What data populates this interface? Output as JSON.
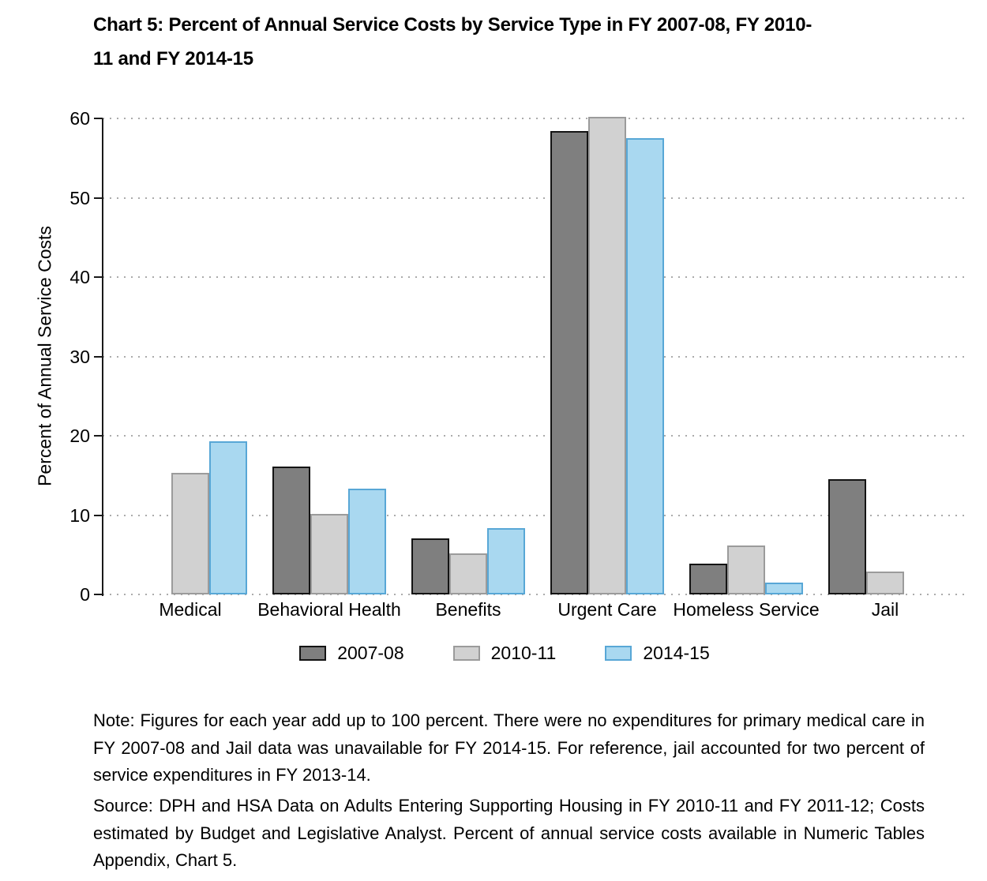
{
  "title": {
    "line1": "Chart 5: Percent of Annual Service Costs by Service Type in FY 2007-08, FY 2010-",
    "line2": "11 and FY 2014-15"
  },
  "chart_data": {
    "type": "bar",
    "categories": [
      "Medical",
      "Behavioral Health",
      "Benefits",
      "Urgent Care",
      "Homeless Service",
      "Jail"
    ],
    "series": [
      {
        "name": "2007-08",
        "fill": "#7f7f7f",
        "border": "#141414",
        "values": [
          0,
          16.1,
          7.1,
          58.4,
          3.9,
          14.5
        ]
      },
      {
        "name": "2010-11",
        "fill": "#d1d1d1",
        "border": "#9b9b9b",
        "values": [
          15.3,
          10.2,
          5.2,
          60.2,
          6.2,
          2.9
        ]
      },
      {
        "name": "2014-15",
        "fill": "#a9d8f0",
        "border": "#58a7d6",
        "values": [
          19.3,
          13.3,
          8.4,
          57.5,
          1.5,
          0
        ]
      }
    ],
    "title": "Chart 5: Percent of Annual Service Costs by Service Type in FY 2007-08, FY 2010-11 and FY 2014-15",
    "xlabel": "",
    "ylabel": "Percent of Annual Service Costs",
    "ylim": [
      0,
      60
    ],
    "yticks": [
      0,
      10,
      20,
      30,
      40,
      50,
      60
    ],
    "grid": "horizontal-dotted",
    "legend_position": "bottom"
  },
  "note": "Note: Figures for each year add up to 100 percent. There were no expenditures for primary medical care in FY 2007-08 and Jail data was unavailable for FY 2014-15. For reference, jail accounted for two percent of service expenditures in FY 2013-14.",
  "source": "Source: DPH and HSA Data on Adults Entering Supporting Housing in FY 2010-11 and FY 2011-12; Costs estimated by Budget and Legislative Analyst. Percent of annual service costs available in Numeric Tables Appendix, Chart 5."
}
